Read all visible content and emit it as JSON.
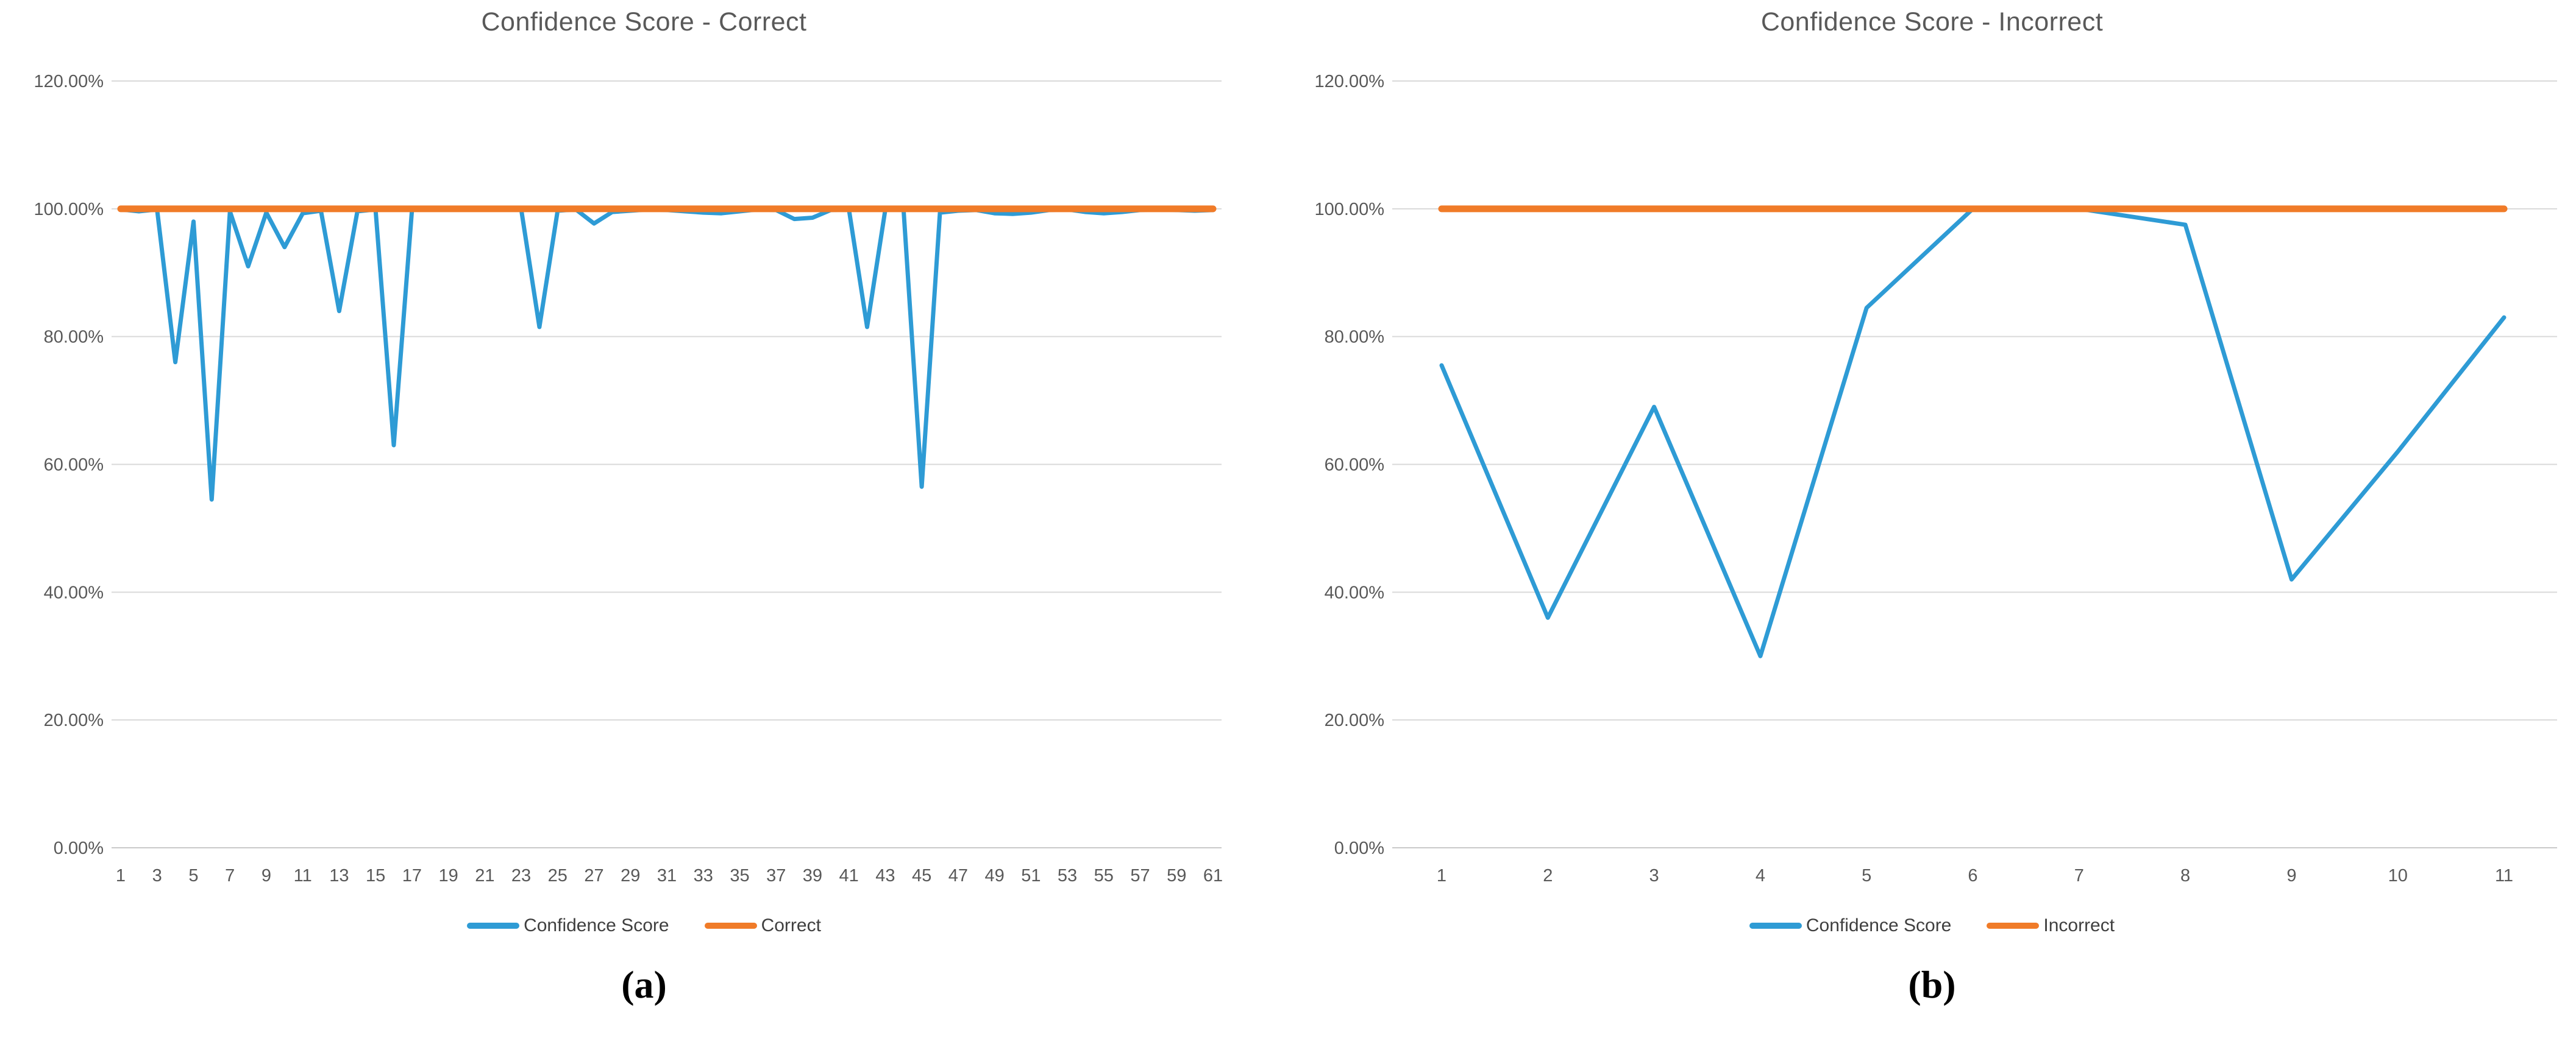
{
  "page_background": "#FFFFFF",
  "colors": {
    "series_blue": "#2E9BD5",
    "series_orange": "#F07B28",
    "gridline": "#D9D9D9",
    "axis_line": "#C9C9C9",
    "title_text": "#595959",
    "tick_text": "#595959",
    "legend_text": "#3F3F3F",
    "panel_label_text": "#000000"
  },
  "chart_data": [
    {
      "type": "line",
      "title": "Confidence Score - Correct",
      "panel_label": "(a)",
      "x": [
        1,
        2,
        3,
        4,
        5,
        6,
        7,
        8,
        9,
        10,
        11,
        12,
        13,
        14,
        15,
        16,
        17,
        18,
        19,
        20,
        21,
        22,
        23,
        24,
        25,
        26,
        27,
        28,
        29,
        30,
        31,
        32,
        33,
        34,
        35,
        36,
        37,
        38,
        39,
        40,
        41,
        42,
        43,
        44,
        45,
        46,
        47,
        48,
        49,
        50,
        51,
        52,
        53,
        54,
        55,
        56,
        57,
        58,
        59,
        60,
        61
      ],
      "x_tick_labels": [
        "1",
        "3",
        "5",
        "7",
        "9",
        "11",
        "13",
        "15",
        "17",
        "19",
        "21",
        "23",
        "25",
        "27",
        "29",
        "31",
        "33",
        "35",
        "37",
        "39",
        "41",
        "43",
        "45",
        "47",
        "49",
        "51",
        "53",
        "55",
        "57",
        "59",
        "61"
      ],
      "y_tick_labels": [
        "120.00%",
        "100.00%",
        "80.00%",
        "60.00%",
        "40.00%",
        "20.00%",
        "0.00%"
      ],
      "ylim": [
        0,
        120
      ],
      "grid": true,
      "legend": [
        "Confidence Score",
        "Correct"
      ],
      "legend_position": "bottom",
      "series": [
        {
          "name": "Confidence Score",
          "color": "#2E9BD5",
          "values": [
            99.9,
            99.6,
            99.9,
            76,
            98,
            54.5,
            99.6,
            91,
            99.4,
            94,
            99.3,
            99.7,
            84,
            99.6,
            99.9,
            63,
            99.9,
            100,
            99.9,
            100,
            99.9,
            100,
            99.9,
            81.5,
            99.7,
            99.9,
            97.7,
            99.5,
            99.7,
            99.9,
            99.8,
            99.6,
            99.4,
            99.3,
            99.6,
            99.9,
            99.8,
            98.4,
            98.6,
            99.8,
            99.9,
            81.5,
            99.9,
            99.9,
            56.5,
            99.4,
            99.7,
            99.8,
            99.3,
            99.2,
            99.4,
            99.8,
            99.9,
            99.5,
            99.3,
            99.5,
            99.8,
            99.9,
            99.8,
            99.7,
            99.8
          ]
        },
        {
          "name": "Correct",
          "color": "#F07B28",
          "constant": 100
        }
      ]
    },
    {
      "type": "line",
      "title": "Confidence Score - Incorrect",
      "panel_label": "(b)",
      "x": [
        1,
        2,
        3,
        4,
        5,
        6,
        7,
        8,
        9,
        10,
        11
      ],
      "x_tick_labels": [
        "1",
        "2",
        "3",
        "4",
        "5",
        "6",
        "7",
        "8",
        "9",
        "10",
        "11"
      ],
      "y_tick_labels": [
        "120.00%",
        "100.00%",
        "80.00%",
        "60.00%",
        "40.00%",
        "20.00%",
        "0.00%"
      ],
      "ylim": [
        0,
        120
      ],
      "grid": true,
      "legend": [
        "Confidence Score",
        "Incorrect"
      ],
      "legend_position": "bottom",
      "series": [
        {
          "name": "Confidence Score",
          "color": "#2E9BD5",
          "values": [
            75.5,
            36,
            69,
            30,
            84.5,
            100,
            100,
            97.5,
            42,
            62,
            83
          ]
        },
        {
          "name": "Incorrect",
          "color": "#F07B28",
          "constant": 100
        }
      ]
    }
  ]
}
